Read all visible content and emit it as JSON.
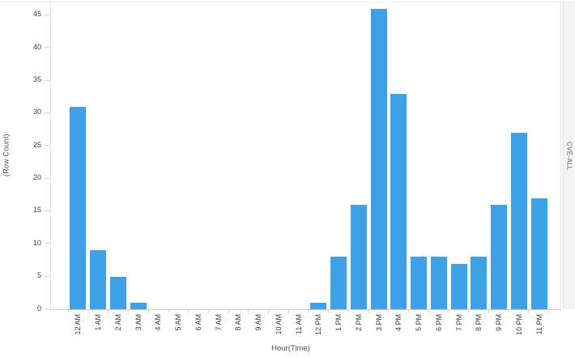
{
  "chart_data": {
    "type": "bar",
    "title": "",
    "xlabel": "Hour(Time)",
    "ylabel": "(Row Count)",
    "right_pane_label": "CVE-ALL",
    "categories": [
      "12 AM",
      "1 AM",
      "2 AM",
      "3 AM",
      "4 AM",
      "5 AM",
      "6 AM",
      "7 AM",
      "8 AM",
      "9 AM",
      "10 AM",
      "11 AM",
      "12 PM",
      "1 PM",
      "2 PM",
      "3 PM",
      "4 PM",
      "5 PM",
      "6 PM",
      "7 PM",
      "8 PM",
      "9 PM",
      "10 PM",
      "11 PM"
    ],
    "values": [
      31,
      9,
      5,
      1,
      0,
      0,
      0,
      0,
      0,
      0,
      0,
      0,
      1,
      8,
      16,
      46,
      33,
      8,
      8,
      7,
      8,
      16,
      27,
      17
    ],
    "yticks": [
      45,
      40,
      35,
      30,
      25,
      20,
      15,
      10,
      5,
      0
    ],
    "ylim": [
      0,
      46
    ],
    "grid": "off",
    "legend": "none",
    "bar_color": "#3EA0E6",
    "axis_line_color": "#cccccc",
    "tick_label_color": "#414141"
  }
}
